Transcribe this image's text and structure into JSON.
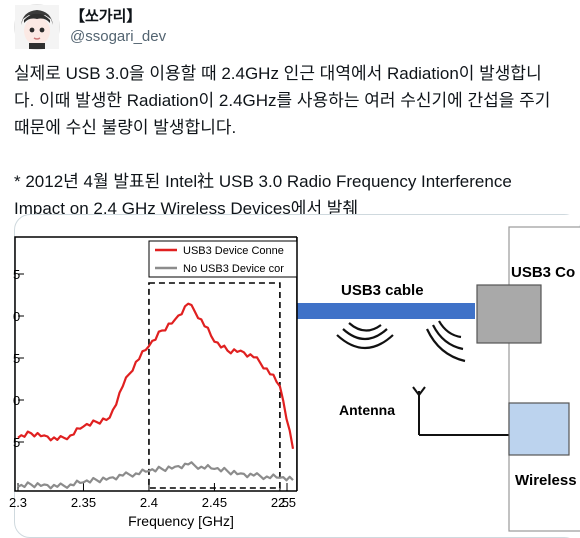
{
  "tweet": {
    "display_name": "【쏘가리】",
    "handle": "@ssogari_dev",
    "paragraphs": [
      "실제로 USB 3.0을 이용할 때 2.4GHz 인근 대역에서 Radiation이 발생합니\n다. 이때 발생한 Radiation이 2.4GHz를 사용하는 여러 수신기에 간섭을 주기\n때문에 수신 불량이 발생합니다.",
      "\n\n* 2012년 4월 발표된 Intel社 USB 3.0 Radio Frequency Interference\nImpact on 2.4 GHz Wireless Devices에서 발췌"
    ]
  },
  "figure": {
    "xlabel": "Frequency [GHz]",
    "ytick_labels": [
      "5",
      "0",
      "5",
      "0",
      "5"
    ],
    "legend": [
      {
        "label": "USB3 Device Conne",
        "color": "#e02020"
      },
      {
        "label": "No USB3 Device cor",
        "color": "#8c8c8c"
      }
    ],
    "diagram_labels": {
      "cable": "USB3 cable",
      "device": "USB3 Co",
      "antenna": "Antenna",
      "wireless": "Wireless"
    },
    "colors": {
      "cable": "#3f72c8",
      "device": "#a9a9a9",
      "wireless": "#bcd3ee"
    }
  },
  "chart_data": {
    "type": "line",
    "x": [
      2.3,
      2.31,
      2.32,
      2.33,
      2.34,
      2.35,
      2.36,
      2.37,
      2.38,
      2.39,
      2.4,
      2.41,
      2.42,
      2.43,
      2.44,
      2.45,
      2.46,
      2.47,
      2.48,
      2.49,
      2.5,
      2.51
    ],
    "x_ticks": [
      "2.3",
      "2.35",
      "2.4",
      "2.45",
      "2.5",
      "2.5"
    ],
    "xlabel": "Frequency [GHz]",
    "xlim": [
      2.3,
      2.51
    ],
    "ylim": [
      0,
      5.6
    ],
    "dashed_region_x": [
      2.4,
      2.5
    ],
    "series": [
      {
        "name": "USB3 Device Conne",
        "color": "#e02020",
        "values": [
          1.15,
          1.25,
          1.2,
          1.1,
          1.2,
          1.4,
          1.5,
          1.6,
          2.3,
          2.85,
          3.2,
          3.55,
          3.8,
          4.15,
          3.8,
          3.3,
          3.1,
          3.1,
          2.95,
          2.7,
          2.3,
          0.9
        ]
      },
      {
        "name": "No USB3 Device cor",
        "color": "#8c8c8c",
        "values": [
          0.05,
          0.1,
          0.1,
          0.05,
          0.1,
          0.15,
          0.2,
          0.25,
          0.3,
          0.35,
          0.4,
          0.45,
          0.5,
          0.55,
          0.5,
          0.45,
          0.4,
          0.35,
          0.3,
          0.28,
          0.25,
          0.2
        ]
      }
    ]
  }
}
